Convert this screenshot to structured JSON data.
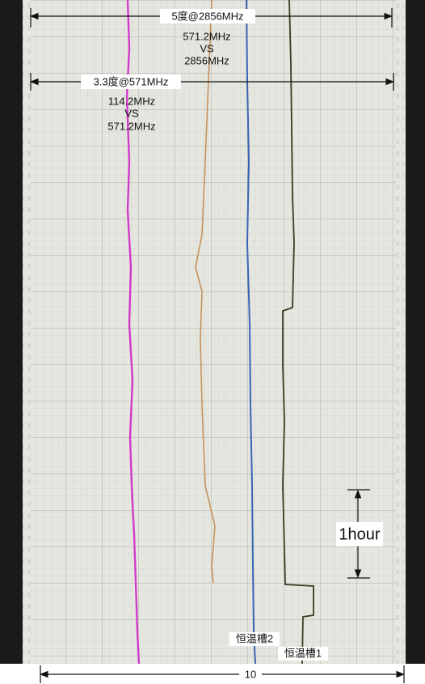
{
  "annotations": {
    "top_span": "5度@2856MHz",
    "top_note": [
      "571.2MHz",
      "VS",
      "2856MHz"
    ],
    "mid_span": "3.3度@571MHz",
    "mid_note": [
      "114.2MHz",
      "VS",
      "571.2MHz"
    ],
    "time_scale": "1hour",
    "bath2": "恒温槽2",
    "bath1": "恒温槽1",
    "bottom_span": "10"
  }
}
